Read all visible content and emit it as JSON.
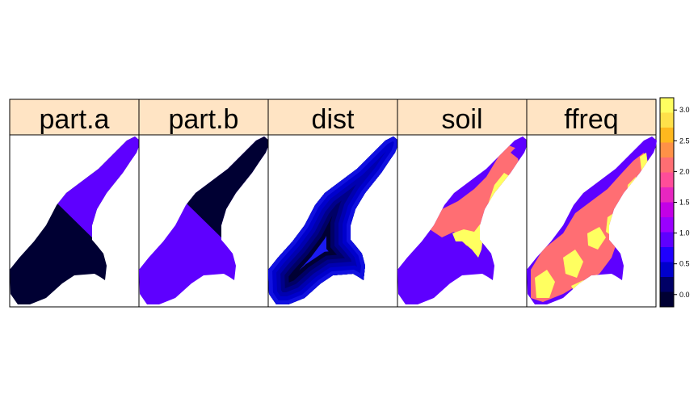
{
  "chart_data": {
    "type": "heatmap",
    "panels": [
      {
        "name": "part.a",
        "fill": "two-part",
        "upper_value": 1,
        "lower_value": 0
      },
      {
        "name": "part.b",
        "fill": "two-part",
        "upper_value": 0,
        "lower_value": 1
      },
      {
        "name": "dist",
        "fill": "distance-gradient",
        "min_value": 0,
        "max_value": 1
      },
      {
        "name": "soil",
        "fill": "categorical",
        "categories": [
          1,
          2,
          3
        ]
      },
      {
        "name": "ffreq",
        "fill": "categorical",
        "categories": [
          1,
          2,
          3
        ]
      }
    ],
    "colorkey": {
      "ticks": [
        "0.0",
        "0.5",
        "1.0",
        "1.5",
        "2.0",
        "2.5",
        "3.0"
      ],
      "range": [
        -0.2,
        3.2
      ],
      "colors": [
        "#000033",
        "#000066",
        "#0000CC",
        "#1F00FF",
        "#5E00FF",
        "#9A00FF",
        "#C300E6",
        "#E726C0",
        "#FF4D99",
        "#FF6E73",
        "#FF9147",
        "#FFB81E",
        "#FFE14A",
        "#FFFF60"
      ]
    },
    "strip_color": "#FFE4C4",
    "grid": false
  }
}
